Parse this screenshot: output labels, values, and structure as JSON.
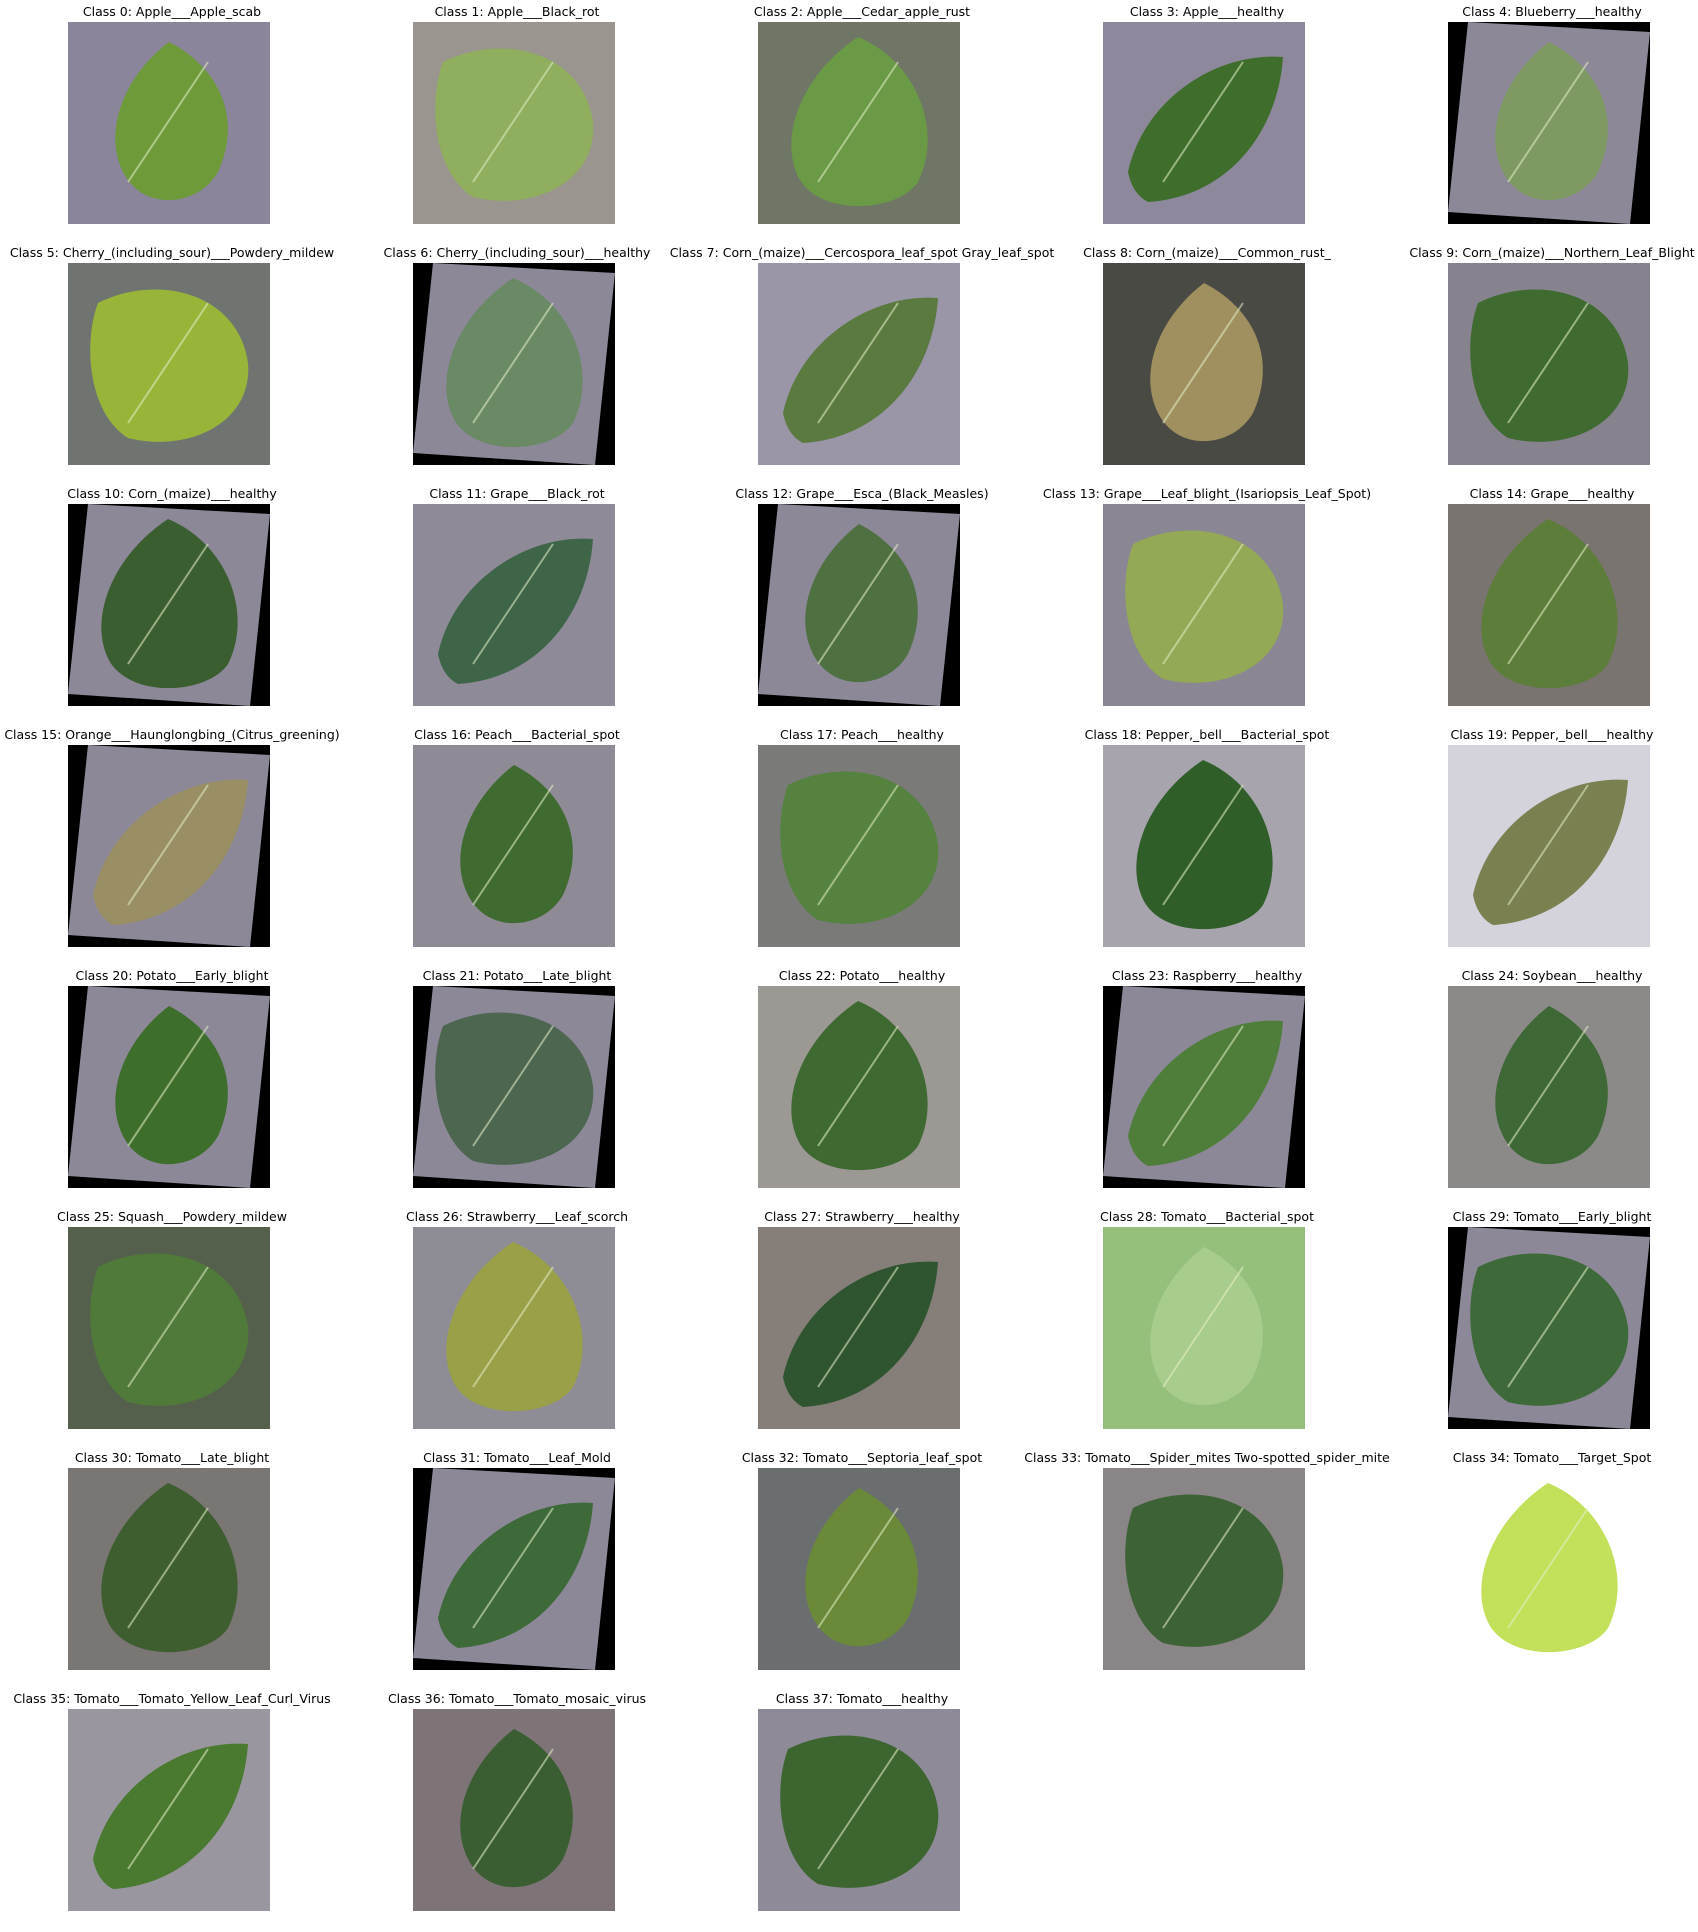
{
  "classes": [
    {
      "label": "Class 0: Apple___Apple_scab",
      "bg": "#8a859a",
      "leaf": "#6e9a3a",
      "bbg": false
    },
    {
      "label": "Class 1: Apple___Black_rot",
      "bg": "#9a958e",
      "leaf": "#8fae5e",
      "bbg": false
    },
    {
      "label": "Class 2: Apple___Cedar_apple_rust",
      "bg": "#6f7666",
      "leaf": "#6a9a45",
      "bbg": false
    },
    {
      "label": "Class 3: Apple___healthy",
      "bg": "#8e889c",
      "leaf": "#3f6e2c",
      "bbg": false
    },
    {
      "label": "Class 4: Blueberry___healthy",
      "bg": "#000000",
      "leaf": "#7e9a62",
      "bbg": true
    },
    {
      "label": "Class 5: Cherry_(including_sour)___Powdery_mildew",
      "bg": "#707470",
      "leaf": "#98b53a",
      "bbg": false
    },
    {
      "label": "Class 6: Cherry_(including_sour)___healthy",
      "bg": "#000000",
      "leaf": "#6a8a66",
      "bbg": true
    },
    {
      "label": "Class 7: Corn_(maize)___Cercospora_leaf_spot Gray_leaf_spot",
      "bg": "#9a96a8",
      "leaf": "#5a7a40",
      "bbg": false
    },
    {
      "label": "Class 8: Corn_(maize)___Common_rust_",
      "bg": "#4a4a44",
      "leaf": "#a09060",
      "bbg": false
    },
    {
      "label": "Class 9: Corn_(maize)___Northern_Leaf_Blight",
      "bg": "#86828e",
      "leaf": "#3f6a30",
      "bbg": false
    },
    {
      "label": "Class 10: Corn_(maize)___healthy",
      "bg": "#000000",
      "leaf": "#3b5e30",
      "bbg": true
    },
    {
      "label": "Class 11: Grape___Black_rot",
      "bg": "#8e8a98",
      "leaf": "#3f6548",
      "bbg": false
    },
    {
      "label": "Class 12: Grape___Esca_(Black_Measles)",
      "bg": "#000000",
      "leaf": "#4f7040",
      "bbg": true
    },
    {
      "label": "Class 13: Grape___Leaf_blight_(Isariopsis_Leaf_Spot)",
      "bg": "#8a8694",
      "leaf": "#93a955",
      "bbg": false
    },
    {
      "label": "Class 14: Grape___healthy",
      "bg": "#7a7470",
      "leaf": "#5d7d3a",
      "bbg": false
    },
    {
      "label": "Class 15: Orange___Haunglongbing_(Citrus_greening)",
      "bg": "#000000",
      "leaf": "#9a8e64",
      "bbg": true
    },
    {
      "label": "Class 16: Peach___Bacterial_spot",
      "bg": "#8e8a96",
      "leaf": "#3f6a30",
      "bbg": false
    },
    {
      "label": "Class 17: Peach___healthy",
      "bg": "#7a7a78",
      "leaf": "#55823e",
      "bbg": false
    },
    {
      "label": "Class 18: Pepper,_bell___Bacterial_spot",
      "bg": "#a8a4ae",
      "leaf": "#2f5e28",
      "bbg": false
    },
    {
      "label": "Class 19: Pepper,_bell___healthy",
      "bg": "#d4d2da",
      "leaf": "#7a8050",
      "bbg": false
    },
    {
      "label": "Class 20: Potato___Early_blight",
      "bg": "#000000",
      "leaf": "#3e6e2c",
      "bbg": true
    },
    {
      "label": "Class 21: Potato___Late_blight",
      "bg": "#000000",
      "leaf": "#4d6650",
      "bbg": true
    },
    {
      "label": "Class 22: Potato___healthy",
      "bg": "#9c9894",
      "leaf": "#3e6a32",
      "bbg": false
    },
    {
      "label": "Class 23: Raspberry___healthy",
      "bg": "#000000",
      "leaf": "#4f7d3a",
      "bbg": true
    },
    {
      "label": "Class 24: Soybean___healthy",
      "bg": "#8c8a88",
      "leaf": "#3e6836",
      "bbg": false
    },
    {
      "label": "Class 25: Squash___Powdery_mildew",
      "bg": "#55604c",
      "leaf": "#4f7a3a",
      "bbg": false
    },
    {
      "label": "Class 26: Strawberry___Leaf_scorch",
      "bg": "#8e8c94",
      "leaf": "#9aa048",
      "bbg": false
    },
    {
      "label": "Class 27: Strawberry___healthy",
      "bg": "#867e78",
      "leaf": "#2f5530",
      "bbg": false
    },
    {
      "label": "Class 28: Tomato___Bacterial_spot",
      "bg": "#94c07c",
      "leaf": "#a8cc8c",
      "bbg": false
    },
    {
      "label": "Class 29: Tomato___Early_blight",
      "bg": "#000000",
      "leaf": "#3e6a3a",
      "bbg": true
    },
    {
      "label": "Class 30: Tomato___Late_blight",
      "bg": "#7a7674",
      "leaf": "#3e5e30",
      "bbg": false
    },
    {
      "label": "Class 31: Tomato___Leaf_Mold",
      "bg": "#000000",
      "leaf": "#3e6a3a",
      "bbg": true
    },
    {
      "label": "Class 32: Tomato___Septoria_leaf_spot",
      "bg": "#6a6e6e",
      "leaf": "#6a8a3a",
      "bbg": false
    },
    {
      "label": "Class 33: Tomato___Spider_mites Two-spotted_spider_mite",
      "bg": "#8a8688",
      "leaf": "#3d6236",
      "bbg": false
    },
    {
      "label": "Class 34: Tomato___Target_Spot",
      "bg": "#ffffff",
      "leaf": "#c2e05a",
      "bbg": false
    },
    {
      "label": "Class 35: Tomato___Tomato_Yellow_Leaf_Curl_Virus",
      "bg": "#9a96a0",
      "leaf": "#4a7a30",
      "bbg": false
    },
    {
      "label": "Class 36: Tomato___Tomato_mosaic_virus",
      "bg": "#7e7478",
      "leaf": "#3a5e32",
      "bbg": false
    },
    {
      "label": "Class 37: Tomato___healthy",
      "bg": "#8e8a98",
      "leaf": "#3d6530",
      "bbg": false
    }
  ]
}
